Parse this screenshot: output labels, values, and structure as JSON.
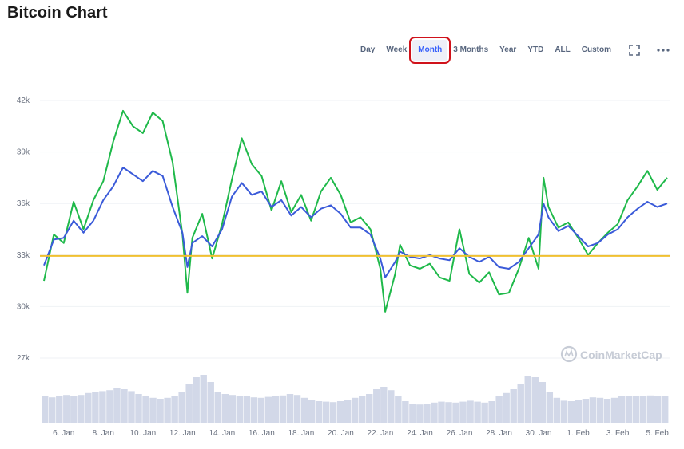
{
  "page": {
    "title": "Bitcoin Chart"
  },
  "toolbar": {
    "ranges": [
      "Day",
      "Week",
      "Month",
      "3 Months",
      "Year",
      "YTD",
      "ALL",
      "Custom"
    ],
    "active_range": "Month",
    "fullscreen_icon": "fullscreen-icon",
    "more_icon": "more-dots-icon"
  },
  "watermark": "CoinMarketCap",
  "colors": {
    "primary": "#3b5bd9",
    "secondary": "#1fb94a",
    "baseline": "#f0c030",
    "volume": "#d2d8e8",
    "grid": "#eff2f5",
    "axis_text": "#6b7280",
    "active_outline": "#d0121b"
  },
  "chart_data": {
    "type": "line",
    "ylim": [
      26000,
      42000
    ],
    "y_ticks": [
      27000,
      30000,
      33000,
      36000,
      39000,
      42000
    ],
    "y_tick_labels": [
      "27k",
      "30k",
      "33k",
      "36k",
      "39k",
      "42k"
    ],
    "x_start": "2021-01-05",
    "x_end": "2021-02-05",
    "x_ticks": [
      "2021-01-06",
      "2021-01-08",
      "2021-01-10",
      "2021-01-12",
      "2021-01-14",
      "2021-01-16",
      "2021-01-18",
      "2021-01-20",
      "2021-01-22",
      "2021-01-24",
      "2021-01-26",
      "2021-01-28",
      "2021-01-30",
      "2021-02-01",
      "2021-02-03",
      "2021-02-05"
    ],
    "x_tick_labels": [
      "6. Jan",
      "8. Jan",
      "10. Jan",
      "12. Jan",
      "14. Jan",
      "16. Jan",
      "18. Jan",
      "20. Jan",
      "22. Jan",
      "24. Jan",
      "26. Jan",
      "28. Jan",
      "30. Jan",
      "1. Feb",
      "3. Feb",
      "5. Feb"
    ],
    "baseline": 32950,
    "grid": true,
    "legend": "none",
    "series": [
      {
        "color": "#3b5bd9",
        "points": [
          [
            "2021-01-05",
            32400
          ],
          [
            "2021-01-05T12:00",
            33900
          ],
          [
            "2021-01-06",
            34000
          ],
          [
            "2021-01-06T12:00",
            35000
          ],
          [
            "2021-01-07",
            34300
          ],
          [
            "2021-01-07T12:00",
            35000
          ],
          [
            "2021-01-08",
            36200
          ],
          [
            "2021-01-08T12:00",
            37000
          ],
          [
            "2021-01-09",
            38100
          ],
          [
            "2021-01-09T12:00",
            37700
          ],
          [
            "2021-01-10",
            37300
          ],
          [
            "2021-01-10T12:00",
            37900
          ],
          [
            "2021-01-11",
            37600
          ],
          [
            "2021-01-11T12:00",
            35800
          ],
          [
            "2021-01-12",
            34300
          ],
          [
            "2021-01-12T06:00",
            32300
          ],
          [
            "2021-01-12T12:00",
            33700
          ],
          [
            "2021-01-13",
            34100
          ],
          [
            "2021-01-13T12:00",
            33500
          ],
          [
            "2021-01-14",
            34500
          ],
          [
            "2021-01-14T12:00",
            36400
          ],
          [
            "2021-01-15",
            37200
          ],
          [
            "2021-01-15T12:00",
            36500
          ],
          [
            "2021-01-16",
            36700
          ],
          [
            "2021-01-16T12:00",
            35800
          ],
          [
            "2021-01-17",
            36200
          ],
          [
            "2021-01-17T12:00",
            35300
          ],
          [
            "2021-01-18",
            35800
          ],
          [
            "2021-01-18T12:00",
            35200
          ],
          [
            "2021-01-19",
            35700
          ],
          [
            "2021-01-19T12:00",
            35900
          ],
          [
            "2021-01-20",
            35400
          ],
          [
            "2021-01-20T12:00",
            34600
          ],
          [
            "2021-01-21",
            34600
          ],
          [
            "2021-01-21T12:00",
            34200
          ],
          [
            "2021-01-22",
            32800
          ],
          [
            "2021-01-22T06:00",
            31700
          ],
          [
            "2021-01-22T18:00",
            32600
          ],
          [
            "2021-01-23",
            33200
          ],
          [
            "2021-01-23T12:00",
            32900
          ],
          [
            "2021-01-24",
            32800
          ],
          [
            "2021-01-24T12:00",
            33000
          ],
          [
            "2021-01-25",
            32800
          ],
          [
            "2021-01-25T12:00",
            32700
          ],
          [
            "2021-01-26",
            33400
          ],
          [
            "2021-01-26T12:00",
            32900
          ],
          [
            "2021-01-27",
            32600
          ],
          [
            "2021-01-27T12:00",
            32900
          ],
          [
            "2021-01-28",
            32300
          ],
          [
            "2021-01-28T12:00",
            32200
          ],
          [
            "2021-01-29",
            32600
          ],
          [
            "2021-01-29T12:00",
            33400
          ],
          [
            "2021-01-30",
            34200
          ],
          [
            "2021-01-30T06:00",
            36000
          ],
          [
            "2021-01-30T12:00",
            35200
          ],
          [
            "2021-01-31",
            34400
          ],
          [
            "2021-01-31T12:00",
            34700
          ],
          [
            "2021-02-01",
            34100
          ],
          [
            "2021-02-01T12:00",
            33500
          ],
          [
            "2021-02-02",
            33700
          ],
          [
            "2021-02-02T12:00",
            34200
          ],
          [
            "2021-02-03",
            34500
          ],
          [
            "2021-02-03T12:00",
            35200
          ],
          [
            "2021-02-04",
            35700
          ],
          [
            "2021-02-04T12:00",
            36100
          ],
          [
            "2021-02-05",
            35800
          ],
          [
            "2021-02-05T12:00",
            36000
          ]
        ]
      },
      {
        "color": "#1fb94a",
        "points": [
          [
            "2021-01-05",
            31500
          ],
          [
            "2021-01-05T12:00",
            34200
          ],
          [
            "2021-01-06",
            33700
          ],
          [
            "2021-01-06T12:00",
            36100
          ],
          [
            "2021-01-07",
            34500
          ],
          [
            "2021-01-07T12:00",
            36200
          ],
          [
            "2021-01-08",
            37300
          ],
          [
            "2021-01-08T12:00",
            39600
          ],
          [
            "2021-01-09",
            41400
          ],
          [
            "2021-01-09T12:00",
            40500
          ],
          [
            "2021-01-10",
            40100
          ],
          [
            "2021-01-10T12:00",
            41300
          ],
          [
            "2021-01-11",
            40800
          ],
          [
            "2021-01-11T12:00",
            38400
          ],
          [
            "2021-01-12",
            34200
          ],
          [
            "2021-01-12T06:00",
            30800
          ],
          [
            "2021-01-12T12:00",
            34000
          ],
          [
            "2021-01-13",
            35400
          ],
          [
            "2021-01-13T12:00",
            32800
          ],
          [
            "2021-01-14",
            34800
          ],
          [
            "2021-01-14T12:00",
            37400
          ],
          [
            "2021-01-15",
            39800
          ],
          [
            "2021-01-15T12:00",
            38300
          ],
          [
            "2021-01-16",
            37600
          ],
          [
            "2021-01-16T12:00",
            35600
          ],
          [
            "2021-01-17",
            37300
          ],
          [
            "2021-01-17T12:00",
            35500
          ],
          [
            "2021-01-18",
            36500
          ],
          [
            "2021-01-18T12:00",
            35000
          ],
          [
            "2021-01-19",
            36700
          ],
          [
            "2021-01-19T12:00",
            37500
          ],
          [
            "2021-01-20",
            36500
          ],
          [
            "2021-01-20T12:00",
            34900
          ],
          [
            "2021-01-21",
            35200
          ],
          [
            "2021-01-21T12:00",
            34500
          ],
          [
            "2021-01-22",
            32200
          ],
          [
            "2021-01-22T06:00",
            29700
          ],
          [
            "2021-01-22T18:00",
            31900
          ],
          [
            "2021-01-23",
            33600
          ],
          [
            "2021-01-23T12:00",
            32400
          ],
          [
            "2021-01-24",
            32200
          ],
          [
            "2021-01-24T12:00",
            32500
          ],
          [
            "2021-01-25",
            31700
          ],
          [
            "2021-01-25T12:00",
            31500
          ],
          [
            "2021-01-26",
            34500
          ],
          [
            "2021-01-26T12:00",
            31900
          ],
          [
            "2021-01-27",
            31400
          ],
          [
            "2021-01-27T12:00",
            32000
          ],
          [
            "2021-01-28",
            30700
          ],
          [
            "2021-01-28T12:00",
            30800
          ],
          [
            "2021-01-29",
            32200
          ],
          [
            "2021-01-29T12:00",
            34000
          ],
          [
            "2021-01-30",
            32200
          ],
          [
            "2021-01-30T06:00",
            37500
          ],
          [
            "2021-01-30T12:00",
            35800
          ],
          [
            "2021-01-31",
            34600
          ],
          [
            "2021-01-31T12:00",
            34900
          ],
          [
            "2021-02-01",
            34000
          ],
          [
            "2021-02-01T12:00",
            33000
          ],
          [
            "2021-02-02",
            33700
          ],
          [
            "2021-02-02T12:00",
            34300
          ],
          [
            "2021-02-03",
            34800
          ],
          [
            "2021-02-03T12:00",
            36200
          ],
          [
            "2021-02-04",
            37000
          ],
          [
            "2021-02-04T12:00",
            37900
          ],
          [
            "2021-02-05",
            36800
          ],
          [
            "2021-02-05T12:00",
            37500
          ]
        ]
      }
    ],
    "volume": {
      "color": "#d2d8e8",
      "levels": [
        0.55,
        0.53,
        0.55,
        0.58,
        0.56,
        0.58,
        0.62,
        0.65,
        0.66,
        0.68,
        0.72,
        0.7,
        0.66,
        0.6,
        0.55,
        0.52,
        0.5,
        0.52,
        0.55,
        0.65,
        0.8,
        0.95,
        1.0,
        0.85,
        0.65,
        0.6,
        0.58,
        0.56,
        0.55,
        0.53,
        0.52,
        0.54,
        0.55,
        0.57,
        0.6,
        0.58,
        0.52,
        0.48,
        0.45,
        0.44,
        0.43,
        0.45,
        0.48,
        0.52,
        0.56,
        0.6,
        0.7,
        0.75,
        0.68,
        0.55,
        0.45,
        0.4,
        0.38,
        0.4,
        0.42,
        0.44,
        0.43,
        0.42,
        0.44,
        0.46,
        0.44,
        0.42,
        0.45,
        0.55,
        0.62,
        0.7,
        0.8,
        0.98,
        0.95,
        0.85,
        0.65,
        0.52,
        0.46,
        0.45,
        0.47,
        0.5,
        0.53,
        0.52,
        0.5,
        0.52,
        0.55,
        0.56,
        0.55,
        0.56,
        0.57,
        0.56,
        0.56
      ]
    }
  }
}
